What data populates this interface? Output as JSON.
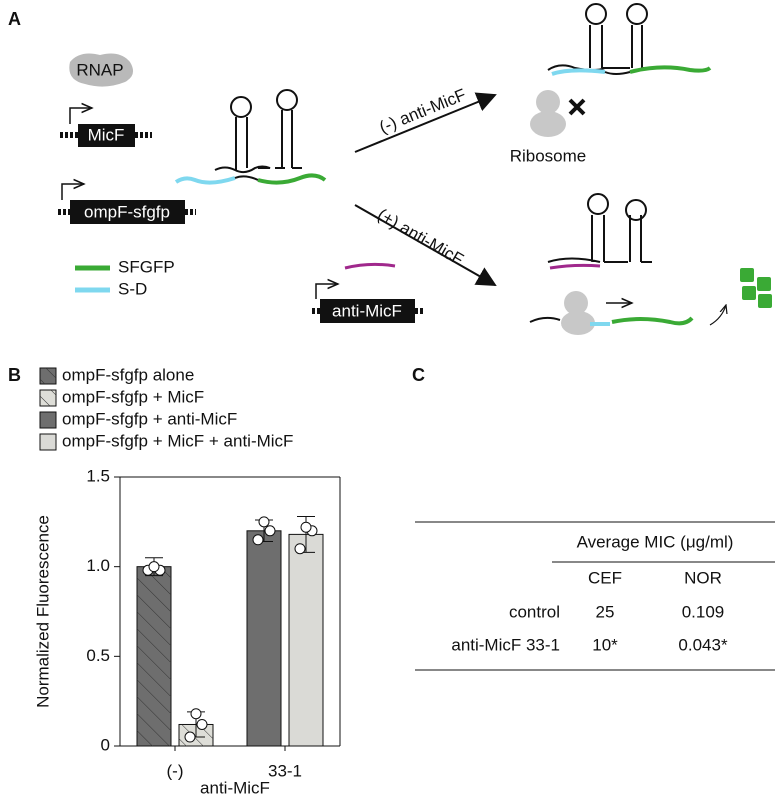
{
  "panel_labels": [
    "A",
    "B",
    "C"
  ],
  "diagram": {
    "rnap": "RNAP",
    "micf": "MicF",
    "ompf": "ompF-sfgfp",
    "anti_micf": "anti-MicF",
    "arrow_minus": "(-) anti-MicF",
    "arrow_plus": "(+) anti-MicF",
    "ribosome": "Ribosome",
    "legend": [
      {
        "label": "SFGFP",
        "color": "#3aaa35"
      },
      {
        "label": "S-D",
        "color": "#7fd8ef"
      }
    ]
  },
  "chart_data": {
    "type": "bar",
    "ylabel": "Normalized Fluorescence",
    "xlabel": "anti-MicF",
    "categories": [
      "(-)",
      "33-1"
    ],
    "series": [
      {
        "name": "ompF-sfgfp alone",
        "color": "#6e6e6e",
        "hatch": true,
        "values": [
          1.0,
          null
        ],
        "errors": [
          0.05,
          null
        ],
        "points": [
          [
            0.98,
            0.98,
            1.0
          ],
          null
        ]
      },
      {
        "name": "ompF-sfgfp + MicF",
        "color": "#deded8",
        "hatch": true,
        "values": [
          0.12,
          null
        ],
        "errors": [
          0.07,
          null
        ],
        "points": [
          [
            0.05,
            0.12,
            0.18
          ],
          null
        ]
      },
      {
        "name": "ompF-sfgfp + anti-MicF",
        "color": "#6e6e6e",
        "hatch": false,
        "values": [
          null,
          1.2
        ],
        "errors": [
          null,
          0.06
        ],
        "points": [
          null,
          [
            1.15,
            1.2,
            1.25
          ]
        ]
      },
      {
        "name": "ompF-sfgfp + MicF + anti-MicF",
        "color": "#dadad6",
        "hatch": false,
        "values": [
          null,
          1.18
        ],
        "errors": [
          null,
          0.1
        ],
        "points": [
          null,
          [
            1.1,
            1.2,
            1.22
          ]
        ]
      }
    ],
    "ylim": [
      0,
      1.5
    ],
    "yticks": [
      0,
      0.5,
      {
        "value": 1,
        "label": "1.0"
      },
      1.5
    ]
  },
  "table": {
    "header": "Average MIC (μg/ml)",
    "columns": [
      "CEF",
      "NOR"
    ],
    "rows": [
      {
        "label": "control",
        "cells": [
          "25",
          "0.109"
        ]
      },
      {
        "label": "anti-MicF 33-1",
        "cells": [
          "10*",
          "0.043*"
        ]
      }
    ]
  }
}
